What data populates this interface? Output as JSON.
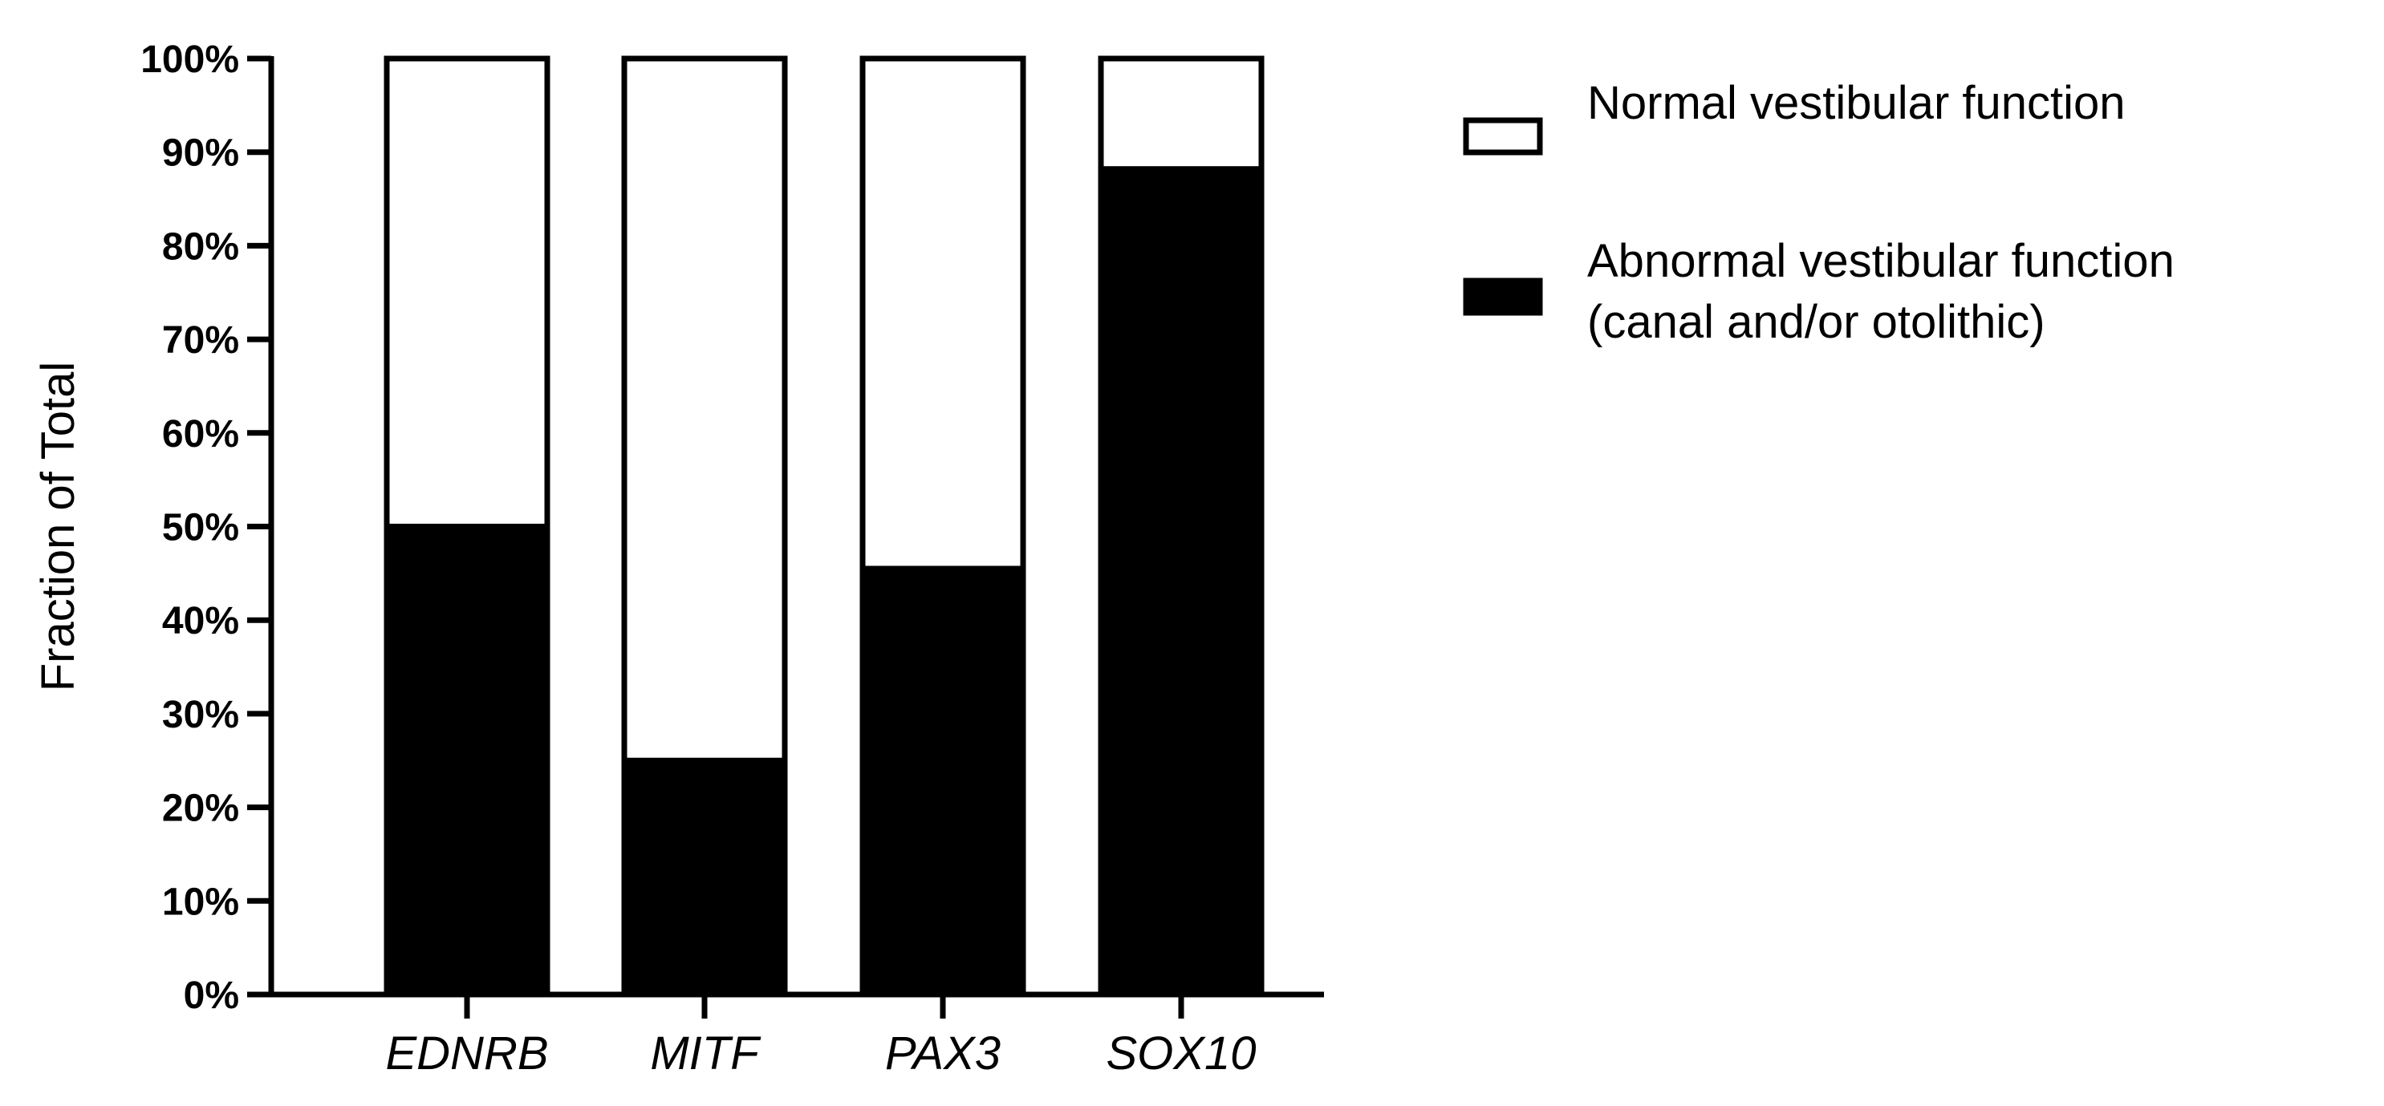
{
  "chart_data": {
    "type": "bar",
    "stacked": true,
    "categories": [
      "EDNRB",
      "MITF",
      "PAX3",
      "SOX10"
    ],
    "series": [
      {
        "name": "Abnormal vestibular function (canal and/or otolithic)",
        "name_lines": [
          "Abnormal vestibular function",
          "(canal and/or otolithic)"
        ],
        "values": [
          50,
          25,
          45.5,
          88.2
        ],
        "color": "#000000"
      },
      {
        "name": "Normal vestibular function",
        "name_lines": [
          "Normal vestibular function"
        ],
        "values": [
          50,
          75,
          54.5,
          11.8
        ],
        "color": "#ffffff"
      }
    ],
    "ylabel": "Fraction of Total",
    "xlabel": "",
    "ylim": [
      0,
      100
    ],
    "yticks": [
      "0%",
      "10%",
      "20%",
      "30%",
      "40%",
      "50%",
      "60%",
      "70%",
      "80%",
      "90%",
      "100%"
    ],
    "grid": false,
    "legend_placement": "right"
  }
}
